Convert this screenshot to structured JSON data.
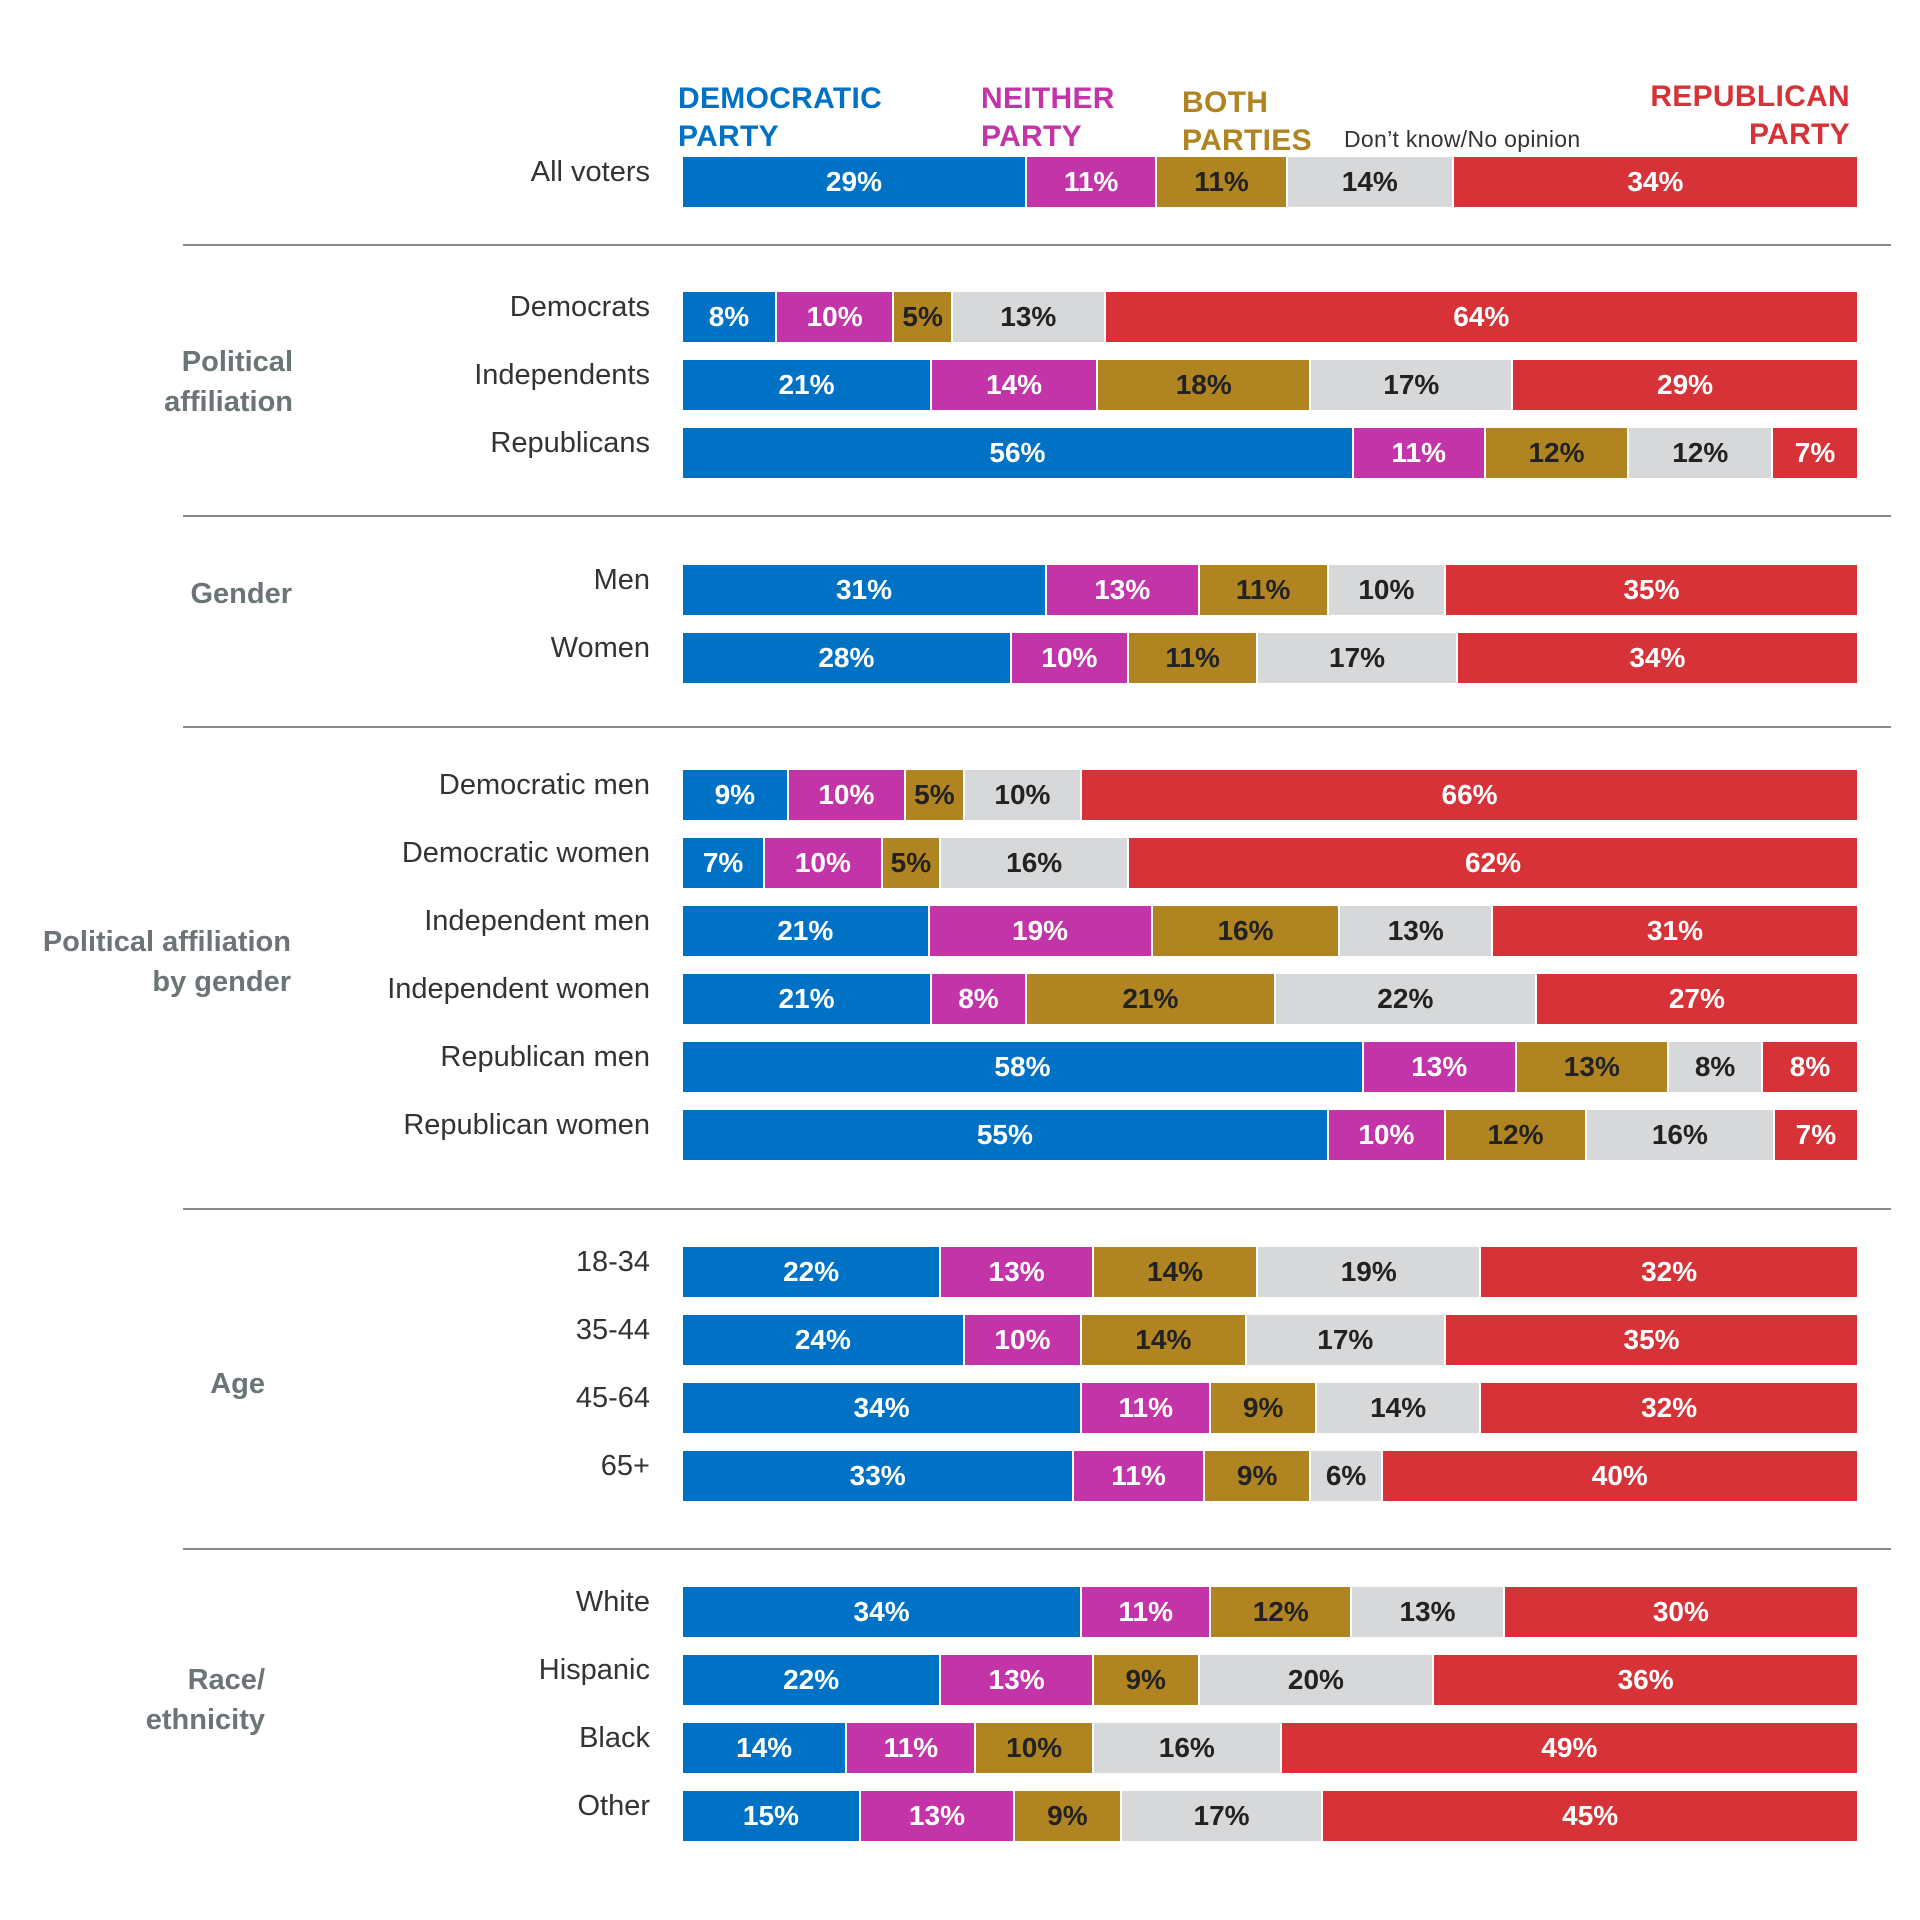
{
  "chart_data": {
    "type": "bar",
    "orientation": "horizontal",
    "stacked": true,
    "normalized_to_percent": true,
    "series": [
      {
        "name": "DEMOCRATIC\nPARTY",
        "color": "#0072c6",
        "text_color": "#ffffff"
      },
      {
        "name": "NEITHER\nPARTY",
        "color": "#c334a8",
        "text_color": "#ffffff"
      },
      {
        "name": "BOTH\nPARTIES",
        "color": "#b08420",
        "text_color": "#222222"
      },
      {
        "name": "Don’t know/No opinion",
        "color": "#d7d8d9",
        "text_color": "#222222"
      },
      {
        "name": "REPUBLICAN\nPARTY",
        "color": "#d73237",
        "text_color": "#ffffff"
      }
    ],
    "groups": [
      {
        "label": "",
        "rows": [
          {
            "label": "All voters",
            "values": [
              29,
              11,
              11,
              14,
              34
            ]
          }
        ]
      },
      {
        "label": "Political\naffiliation",
        "rows": [
          {
            "label": "Democrats",
            "values": [
              8,
              10,
              5,
              13,
              64
            ]
          },
          {
            "label": "Independents",
            "values": [
              21,
              14,
              18,
              17,
              29
            ]
          },
          {
            "label": "Republicans",
            "values": [
              56,
              11,
              12,
              12,
              7
            ]
          }
        ]
      },
      {
        "label": "Gender",
        "rows": [
          {
            "label": "Men",
            "values": [
              31,
              13,
              11,
              10,
              35
            ]
          },
          {
            "label": "Women",
            "values": [
              28,
              10,
              11,
              17,
              34
            ]
          }
        ]
      },
      {
        "label": "Political affiliation\nby gender",
        "rows": [
          {
            "label": "Democratic men",
            "values": [
              9,
              10,
              5,
              10,
              66
            ]
          },
          {
            "label": "Democratic women",
            "values": [
              7,
              10,
              5,
              16,
              62
            ]
          },
          {
            "label": "Independent men",
            "values": [
              21,
              19,
              16,
              13,
              31
            ]
          },
          {
            "label": "Independent women",
            "values": [
              21,
              8,
              21,
              22,
              27
            ]
          },
          {
            "label": "Republican men",
            "values": [
              58,
              13,
              13,
              8,
              8
            ]
          },
          {
            "label": "Republican women",
            "values": [
              55,
              10,
              12,
              16,
              7
            ]
          }
        ]
      },
      {
        "label": "Age",
        "rows": [
          {
            "label": "18-34",
            "values": [
              22,
              13,
              14,
              19,
              32
            ]
          },
          {
            "label": "35-44",
            "values": [
              24,
              10,
              14,
              17,
              35
            ]
          },
          {
            "label": "45-64",
            "values": [
              34,
              11,
              9,
              14,
              32
            ]
          },
          {
            "label": "65+",
            "values": [
              33,
              11,
              9,
              6,
              40
            ]
          }
        ]
      },
      {
        "label": "Race/\nethnicity",
        "rows": [
          {
            "label": "White",
            "values": [
              34,
              11,
              12,
              13,
              30
            ]
          },
          {
            "label": "Hispanic",
            "values": [
              22,
              13,
              9,
              20,
              36
            ]
          },
          {
            "label": "Black",
            "values": [
              14,
              11,
              10,
              16,
              49
            ]
          },
          {
            "label": "Other",
            "values": [
              15,
              13,
              9,
              17,
              45
            ]
          }
        ]
      }
    ],
    "value_suffix": "%"
  }
}
